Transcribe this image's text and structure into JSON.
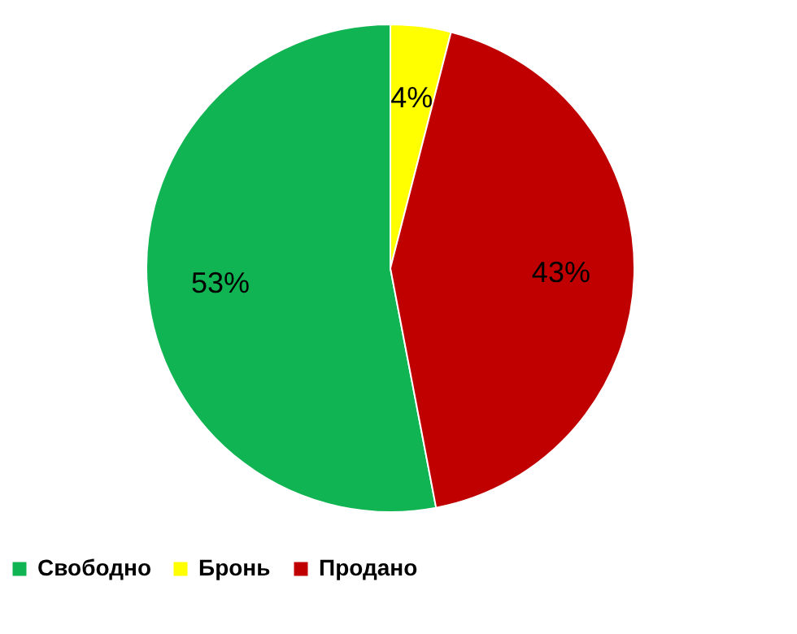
{
  "chart_data": {
    "type": "pie",
    "categories": [
      "Свободно",
      "Бронь",
      "Продано"
    ],
    "values": [
      53,
      4,
      43
    ],
    "colors": [
      "#10b452",
      "#ffff00",
      "#c00000"
    ],
    "value_labels": [
      "53%",
      "4%",
      "43%"
    ],
    "legend": "bottom"
  }
}
